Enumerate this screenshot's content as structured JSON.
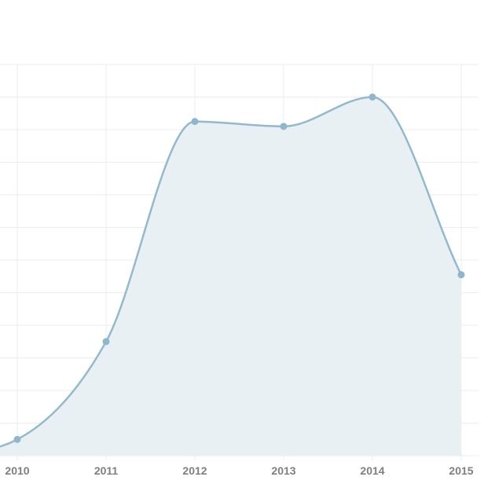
{
  "chart_data": {
    "type": "area",
    "x": [
      "2010",
      "2011",
      "2012",
      "2013",
      "2014",
      "2015"
    ],
    "values": [
      0.5,
      3.5,
      10.25,
      10.1,
      11.0,
      5.55
    ],
    "ylim": [
      0,
      12
    ],
    "yticks": [
      0,
      1,
      2,
      3,
      4,
      5,
      6,
      7,
      8,
      9,
      10,
      11,
      12
    ],
    "grid": true,
    "legend": "none",
    "colors": {
      "line": "#94b9cd",
      "fill": "#e8f0f4",
      "point": "#90b6cb",
      "grid": "#ececec",
      "tick_label": "#7f7f7f"
    }
  }
}
